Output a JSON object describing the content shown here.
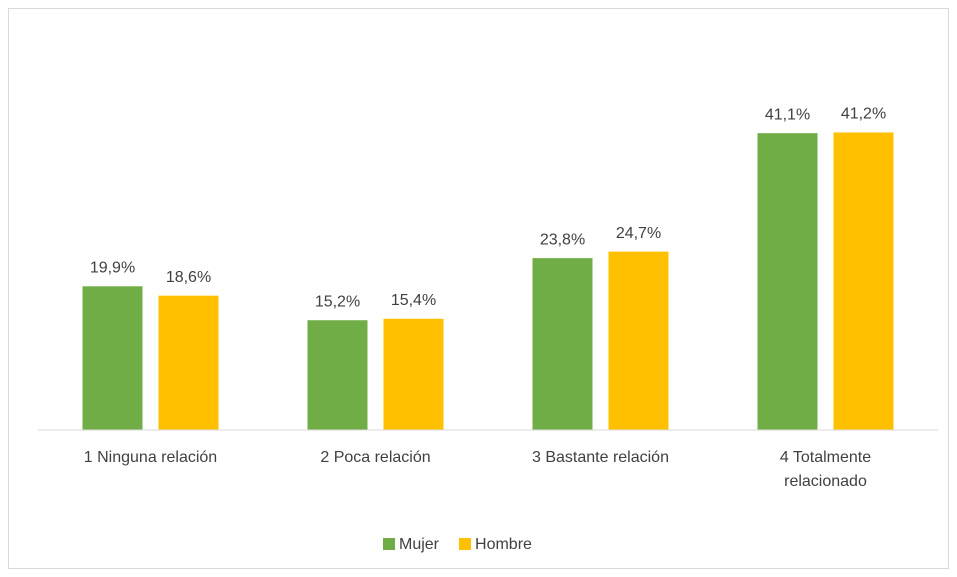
{
  "chart_data": {
    "type": "bar",
    "categories": [
      "1 Ninguna relación",
      "2 Poca relación",
      "3 Bastante relación",
      "4 Totalmente relacionado"
    ],
    "series": [
      {
        "name": "Mujer",
        "color": "#70ad47",
        "values": [
          19.9,
          15.2,
          23.8,
          41.1
        ],
        "value_labels": [
          "19,9%",
          "15,2%",
          "23,8%",
          "41,1%"
        ]
      },
      {
        "name": "Hombre",
        "color": "#ffc000",
        "values": [
          18.6,
          15.4,
          24.7,
          41.2
        ],
        "value_labels": [
          "18,6%",
          "15,4%",
          "24,7%",
          "41,2%"
        ]
      }
    ],
    "ylim": [
      0,
      45
    ],
    "legend": "bottom"
  }
}
